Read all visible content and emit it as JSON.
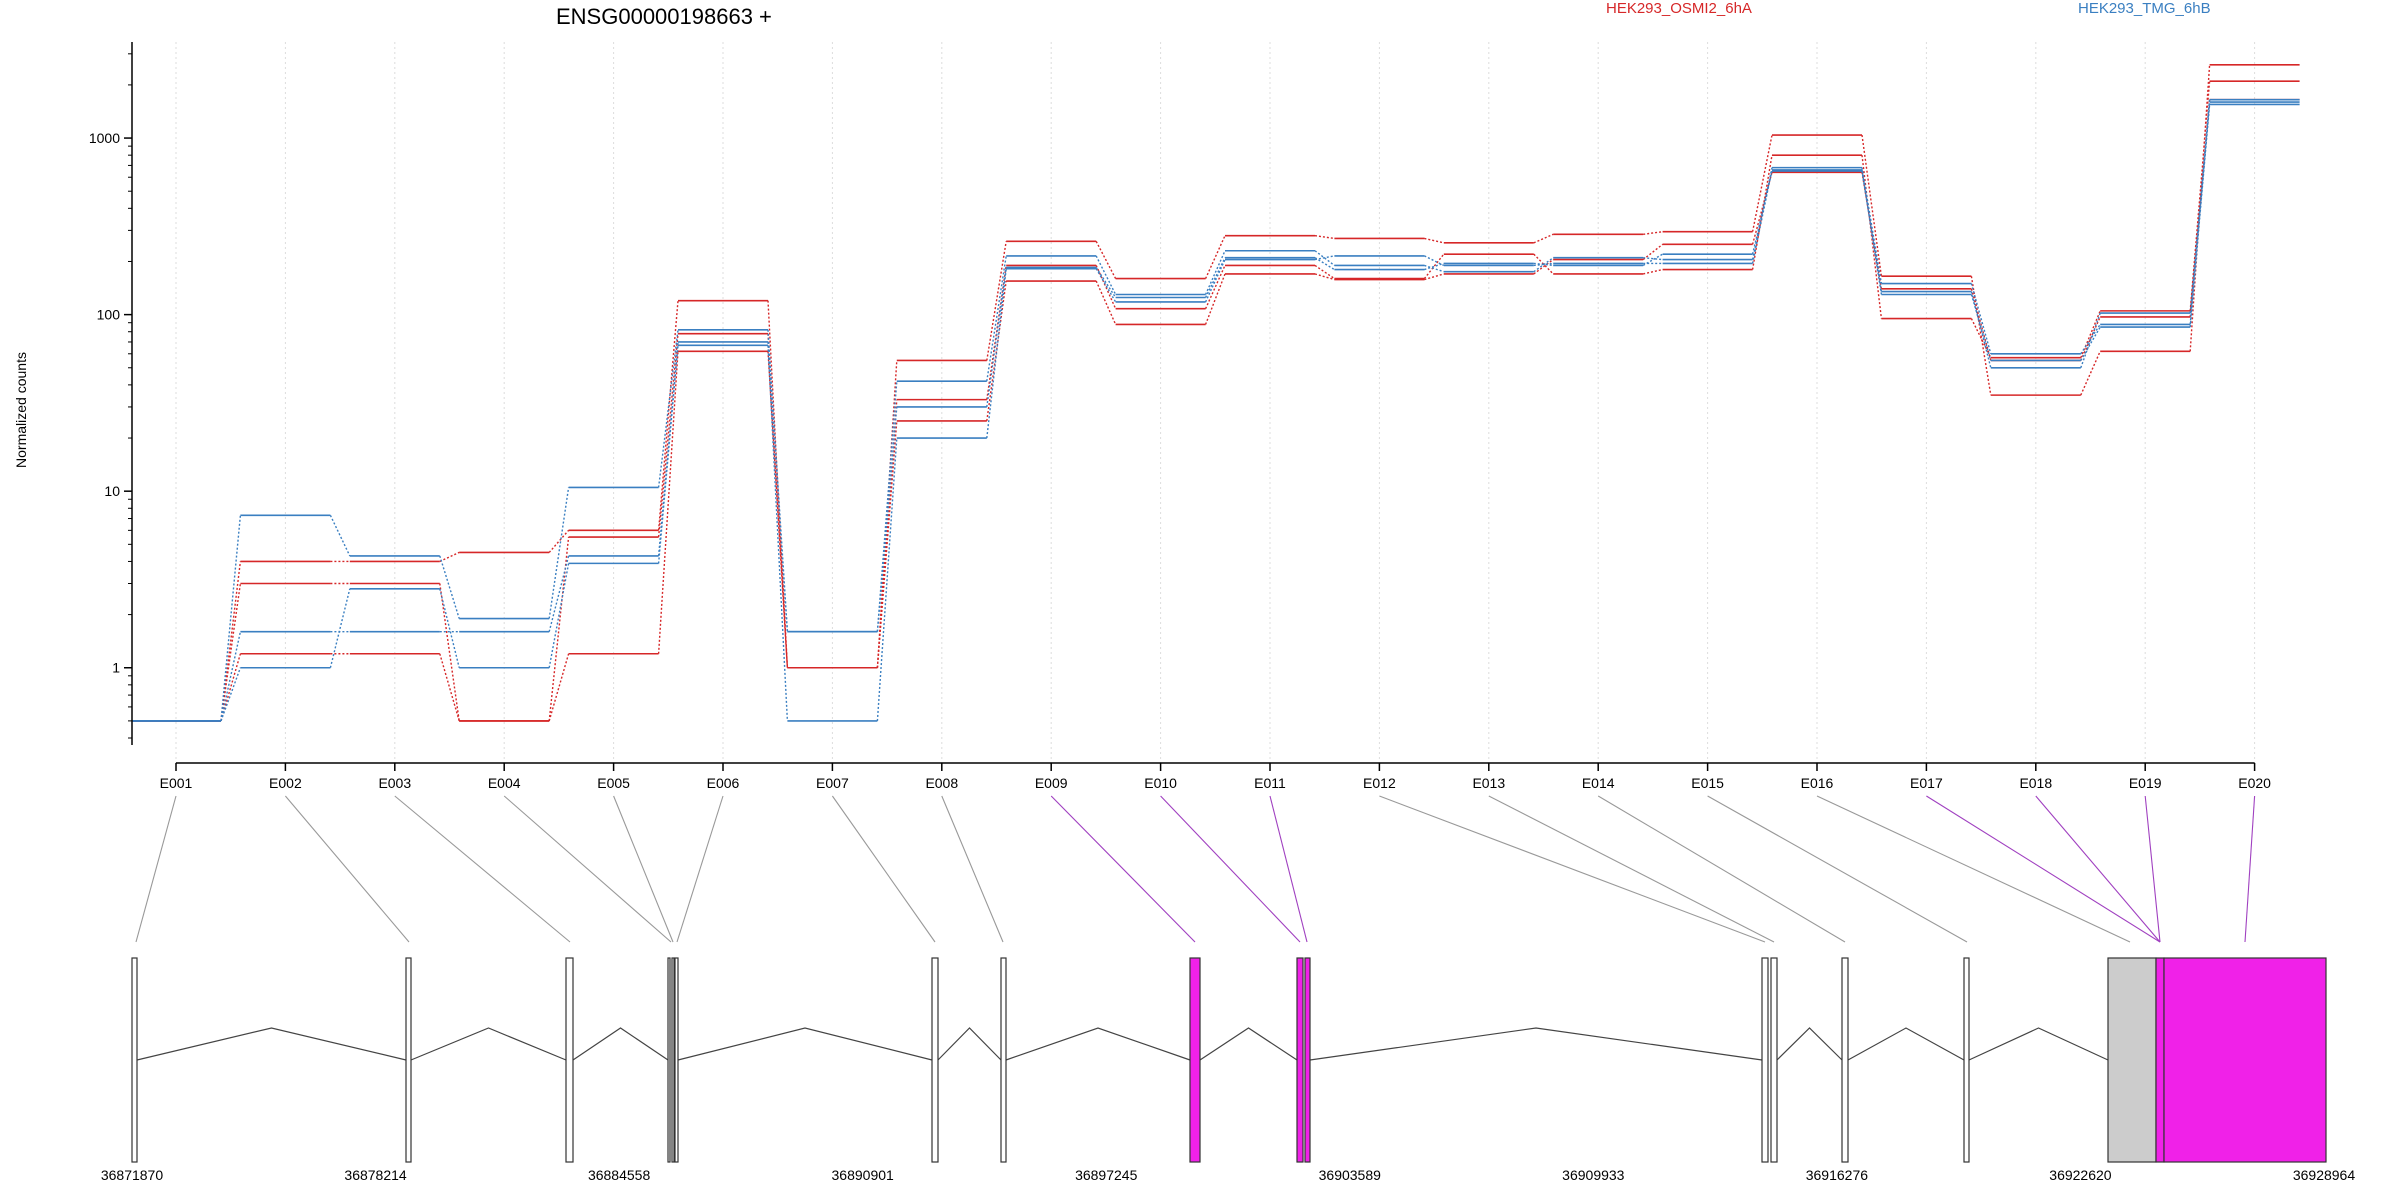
{
  "chart_data": {
    "type": "line",
    "title": "ENSG00000198663 +",
    "ylabel": "Normalized counts",
    "yscale": "log",
    "ylim": [
      0.4,
      3500
    ],
    "yticks": [
      {
        "value": 1,
        "label": "1"
      },
      {
        "value": 10,
        "label": "10"
      },
      {
        "value": 100,
        "label": "100"
      },
      {
        "value": 1000,
        "label": "1000"
      }
    ],
    "exons": [
      "E001",
      "E002",
      "E003",
      "E004",
      "E005",
      "E006",
      "E007",
      "E008",
      "E009",
      "E010",
      "E011",
      "E012",
      "E013",
      "E014",
      "E015",
      "E016",
      "E017",
      "E018",
      "E019",
      "E020"
    ],
    "legend": [
      {
        "label": "HEK293_OSMI2_6hA",
        "color": "#d62728"
      },
      {
        "label": "HEK293_TMG_6hB",
        "color": "#3a7fc1"
      }
    ],
    "series": [
      {
        "group": 0,
        "color": "#d62728",
        "values": [
          0.5,
          4.0,
          4.0,
          4.5,
          6.0,
          120,
          1.0,
          55,
          260,
          160,
          280,
          270,
          255,
          285,
          295,
          1040,
          165,
          35,
          62,
          2600
        ]
      },
      {
        "group": 0,
        "color": "#d62728",
        "values": [
          0.5,
          3.0,
          3.0,
          0.5,
          5.5,
          78,
          1.0,
          33,
          190,
          108,
          190,
          160,
          220,
          170,
          180,
          800,
          95,
          57,
          105,
          2100
        ]
      },
      {
        "group": 0,
        "color": "#d62728",
        "values": [
          0.5,
          1.2,
          1.2,
          0.5,
          1.2,
          62,
          1.0,
          25,
          155,
          88,
          170,
          158,
          170,
          205,
          250,
          640,
          140,
          55,
          97,
          1650
        ]
      },
      {
        "group": 1,
        "color": "#3a7fc1",
        "values": [
          0.5,
          7.3,
          4.3,
          1.9,
          10.5,
          82,
          1.6,
          42,
          215,
          130,
          230,
          190,
          175,
          210,
          205,
          680,
          150,
          60,
          88,
          1600
        ]
      },
      {
        "group": 1,
        "color": "#3a7fc1",
        "values": [
          0.5,
          1.6,
          1.6,
          1.6,
          4.3,
          70,
          1.6,
          30,
          185,
          125,
          210,
          180,
          195,
          190,
          220,
          650,
          135,
          50,
          102,
          1650
        ]
      },
      {
        "group": 1,
        "color": "#3a7fc1",
        "values": [
          0.5,
          1.0,
          2.8,
          1.0,
          3.9,
          67,
          0.5,
          20,
          182,
          118,
          205,
          215,
          190,
          195,
          195,
          660,
          130,
          55,
          85,
          1550
        ]
      }
    ],
    "gene_model": {
      "coord_labels": [
        "36871870",
        "36878214",
        "36884558",
        "36890901",
        "36897245",
        "36903589",
        "36909933",
        "36916276",
        "36922620",
        "36928964"
      ],
      "exon_highlight": [
        false,
        false,
        false,
        false,
        false,
        false,
        false,
        false,
        true,
        true,
        true,
        false,
        false,
        false,
        false,
        false,
        true,
        true,
        true,
        true
      ]
    }
  },
  "colors": {
    "group_a": "#d62728",
    "group_b": "#3a7fc1",
    "highlight": "#f021e8",
    "exon_fill": "#cccccc"
  }
}
